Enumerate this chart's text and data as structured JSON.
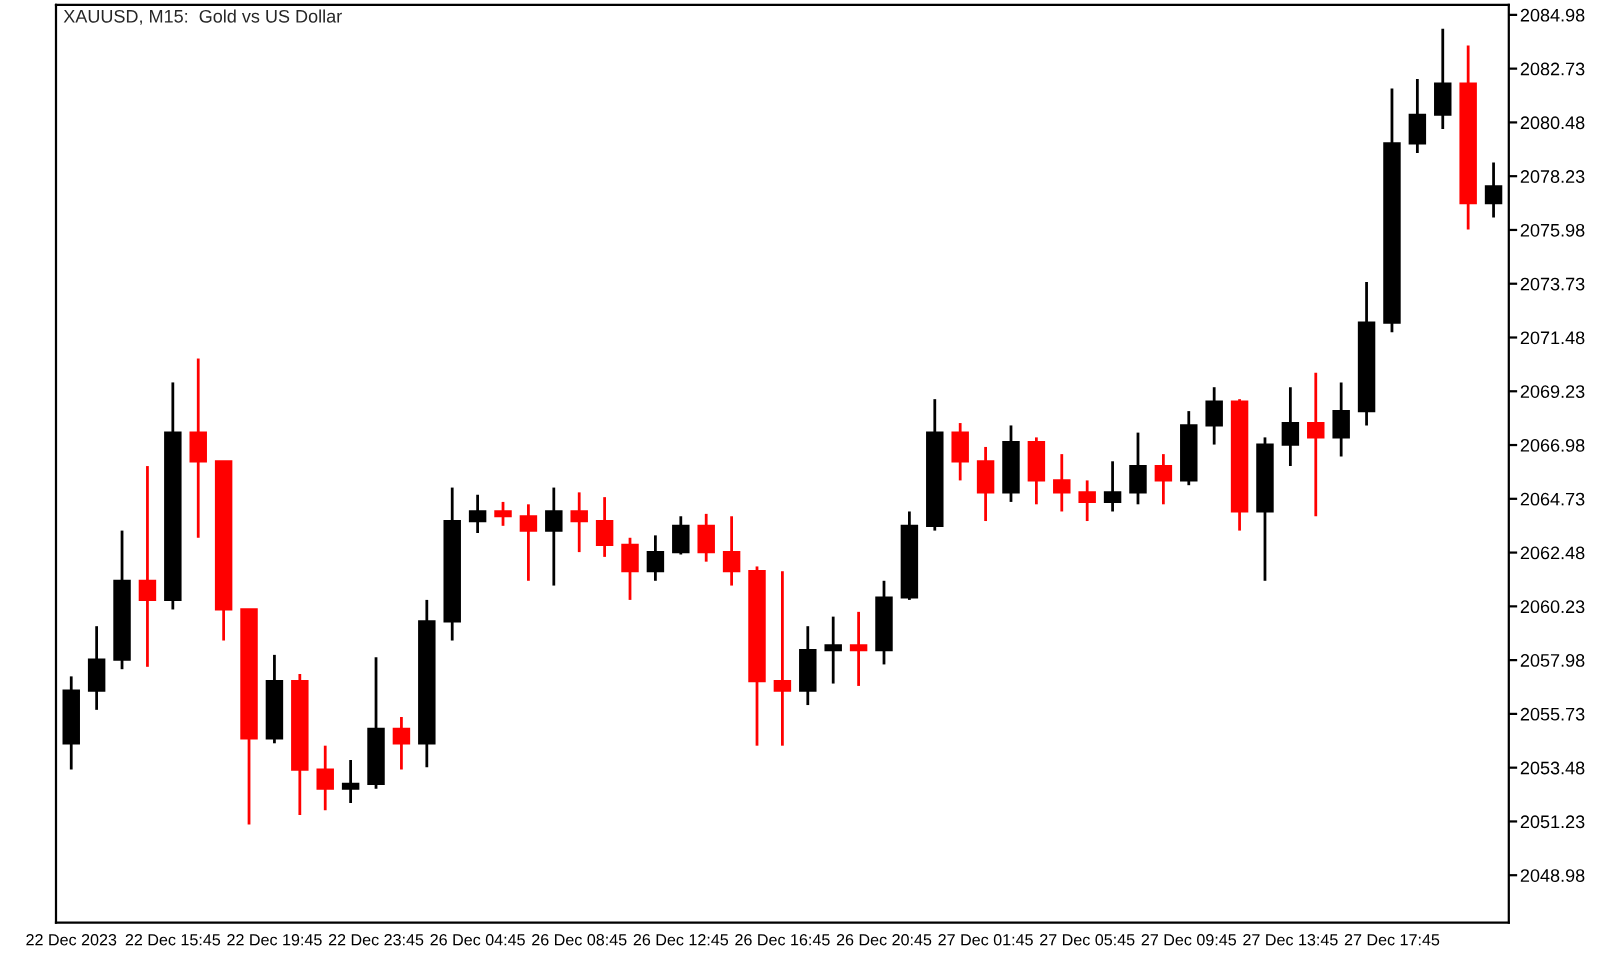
{
  "chart_data": {
    "type": "candlestick",
    "title": "XAUUSD, M15:  Gold vs US Dollar",
    "categories": [
      "22 Dec 2023",
      null,
      null,
      null,
      "22 Dec 15:45",
      null,
      null,
      null,
      "22 Dec 19:45",
      null,
      null,
      null,
      "22 Dec 23:45",
      null,
      null,
      null,
      "26 Dec 04:45",
      null,
      null,
      null,
      "26 Dec 08:45",
      null,
      null,
      null,
      "26 Dec 12:45",
      null,
      null,
      null,
      "26 Dec 16:45",
      null,
      null,
      null,
      "26 Dec 20:45",
      null,
      null,
      null,
      "27 Dec 01:45",
      null,
      null,
      null,
      "27 Dec 05:45",
      null,
      null,
      null,
      "27 Dec 09:45",
      null,
      null,
      null,
      "27 Dec 13:45",
      null,
      null,
      null,
      "27 Dec 17:45",
      null,
      null,
      null,
      null
    ],
    "ohlc": [
      [
        2054.5,
        2057.3,
        2053.4,
        2056.7
      ],
      [
        2056.7,
        2059.4,
        2055.9,
        2058.0
      ],
      [
        2058.0,
        2063.4,
        2057.6,
        2061.3
      ],
      [
        2061.3,
        2066.1,
        2057.7,
        2060.5
      ],
      [
        2060.5,
        2069.6,
        2060.1,
        2067.5
      ],
      [
        2067.5,
        2070.6,
        2063.1,
        2066.3
      ],
      [
        2066.3,
        2066.3,
        2058.8,
        2060.1
      ],
      [
        2060.1,
        2060.1,
        2051.1,
        2054.7
      ],
      [
        2054.7,
        2058.2,
        2054.5,
        2057.1
      ],
      [
        2057.1,
        2057.4,
        2051.5,
        2053.4
      ],
      [
        2053.4,
        2054.4,
        2051.7,
        2052.6
      ],
      [
        2052.6,
        2053.8,
        2052.0,
        2052.8
      ],
      [
        2052.8,
        2058.1,
        2052.6,
        2055.1
      ],
      [
        2055.1,
        2055.6,
        2053.4,
        2054.5
      ],
      [
        2054.5,
        2060.5,
        2053.5,
        2059.6
      ],
      [
        2059.6,
        2065.2,
        2058.8,
        2063.8
      ],
      [
        2063.8,
        2064.9,
        2063.3,
        2064.2
      ],
      [
        2064.2,
        2064.6,
        2063.6,
        2064.0
      ],
      [
        2064.0,
        2064.5,
        2061.3,
        2063.4
      ],
      [
        2063.4,
        2065.2,
        2061.1,
        2064.2
      ],
      [
        2064.2,
        2065.0,
        2062.5,
        2063.8
      ],
      [
        2063.8,
        2064.8,
        2062.3,
        2062.8
      ],
      [
        2062.8,
        2063.1,
        2060.5,
        2061.7
      ],
      [
        2061.7,
        2063.2,
        2061.3,
        2062.5
      ],
      [
        2062.5,
        2064.0,
        2062.4,
        2063.6
      ],
      [
        2063.6,
        2064.1,
        2062.1,
        2062.5
      ],
      [
        2062.5,
        2064.0,
        2061.1,
        2061.7
      ],
      [
        2061.7,
        2061.9,
        2054.4,
        2057.1
      ],
      [
        2057.1,
        2061.7,
        2054.4,
        2056.7
      ],
      [
        2056.7,
        2059.4,
        2056.1,
        2058.4
      ],
      [
        2058.4,
        2059.8,
        2057.0,
        2058.6
      ],
      [
        2058.6,
        2060.0,
        2056.9,
        2058.4
      ],
      [
        2058.4,
        2061.3,
        2057.8,
        2060.6
      ],
      [
        2060.6,
        2064.2,
        2060.5,
        2063.6
      ],
      [
        2063.6,
        2068.9,
        2063.4,
        2067.5
      ],
      [
        2067.5,
        2067.9,
        2065.5,
        2066.3
      ],
      [
        2066.3,
        2066.9,
        2063.8,
        2065.0
      ],
      [
        2065.0,
        2067.8,
        2064.6,
        2067.1
      ],
      [
        2067.1,
        2067.3,
        2064.5,
        2065.5
      ],
      [
        2065.5,
        2066.6,
        2064.2,
        2065.0
      ],
      [
        2065.0,
        2065.5,
        2063.8,
        2064.6
      ],
      [
        2064.6,
        2066.3,
        2064.2,
        2065.0
      ],
      [
        2065.0,
        2067.5,
        2064.5,
        2066.1
      ],
      [
        2066.1,
        2066.6,
        2064.5,
        2065.5
      ],
      [
        2065.5,
        2068.4,
        2065.3,
        2067.8
      ],
      [
        2067.8,
        2069.4,
        2067.0,
        2068.8
      ],
      [
        2068.8,
        2068.9,
        2063.4,
        2064.2
      ],
      [
        2064.2,
        2067.3,
        2061.3,
        2067.0
      ],
      [
        2067.0,
        2069.4,
        2066.1,
        2067.9
      ],
      [
        2067.9,
        2070.0,
        2064.0,
        2067.3
      ],
      [
        2067.3,
        2069.6,
        2066.5,
        2068.4
      ],
      [
        2068.4,
        2073.8,
        2067.8,
        2072.1
      ],
      [
        2072.1,
        2081.9,
        2071.7,
        2079.6
      ],
      [
        2079.6,
        2082.3,
        2079.2,
        2080.8
      ],
      [
        2080.8,
        2084.4,
        2080.2,
        2082.1
      ],
      [
        2082.1,
        2083.7,
        2076.0,
        2077.1
      ],
      [
        2077.1,
        2078.8,
        2076.5,
        2077.8
      ]
    ],
    "colors": [
      "#000000",
      "#000000",
      "#000000",
      "#ff0000",
      "#000000",
      "#ff0000",
      "#ff0000",
      "#ff0000",
      "#000000",
      "#ff0000",
      "#ff0000",
      "#000000",
      "#000000",
      "#ff0000",
      "#000000",
      "#000000",
      "#000000",
      "#ff0000",
      "#ff0000",
      "#000000",
      "#ff0000",
      "#ff0000",
      "#ff0000",
      "#000000",
      "#000000",
      "#ff0000",
      "#ff0000",
      "#ff0000",
      "#ff0000",
      "#000000",
      "#000000",
      "#ff0000",
      "#000000",
      "#000000",
      "#000000",
      "#ff0000",
      "#ff0000",
      "#000000",
      "#ff0000",
      "#ff0000",
      "#ff0000",
      "#000000",
      "#000000",
      "#ff0000",
      "#000000",
      "#000000",
      "#ff0000",
      "#000000",
      "#000000",
      "#ff0000",
      "#000000",
      "#000000",
      "#000000",
      "#000000",
      "#000000",
      "#ff0000",
      "#000000"
    ],
    "ylim": [
      2047.0,
      2085.4
    ],
    "yticks": [
      2048.98,
      2051.23,
      2053.48,
      2055.73,
      2057.98,
      2060.23,
      2062.48,
      2064.73,
      2066.98,
      2069.23,
      2071.48,
      2073.73,
      2075.98,
      2078.23,
      2080.48,
      2082.73,
      2084.98
    ],
    "grid": false,
    "legend": false
  }
}
